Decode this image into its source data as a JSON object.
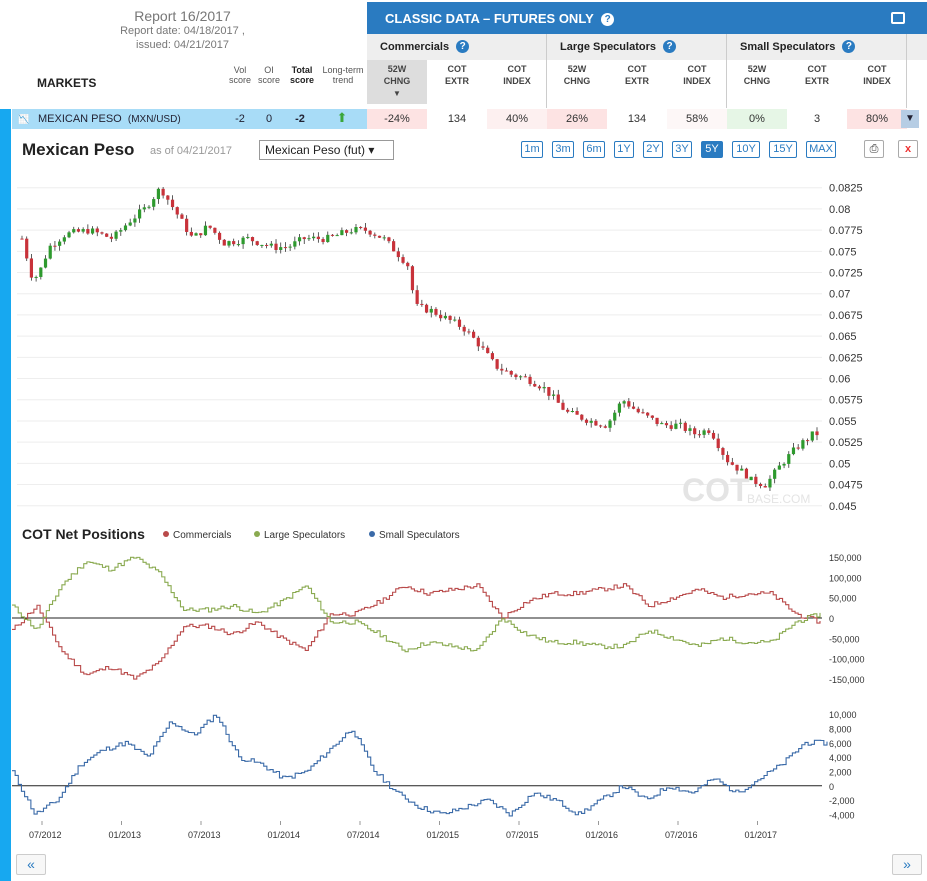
{
  "report": {
    "title": "Report 16/2017",
    "report_date": "Report date: 04/18/2017 ,",
    "issued": "issued: 04/21/2017"
  },
  "markets_header": "MARKETS",
  "score_headers": {
    "vol": "Vol",
    "vol2": "score",
    "oi": "OI",
    "oi2": "score",
    "total": "Total",
    "total2": "score",
    "trend": "Long-term",
    "trend2": "trend"
  },
  "banner": "CLASSIC DATA – FUTURES ONLY",
  "groups": [
    "Commercials",
    "Large Speculators",
    "Small Speculators"
  ],
  "col_headers": [
    {
      "l1": "52W",
      "l2": "CHNG"
    },
    {
      "l1": "COT",
      "l2": "EXTR"
    },
    {
      "l1": "COT",
      "l2": "INDEX"
    },
    {
      "l1": "52W",
      "l2": "CHNG"
    },
    {
      "l1": "COT",
      "l2": "EXTR"
    },
    {
      "l1": "COT",
      "l2": "INDEX"
    },
    {
      "l1": "52W",
      "l2": "CHNG"
    },
    {
      "l1": "COT",
      "l2": "EXTR"
    },
    {
      "l1": "COT",
      "l2": "INDEX"
    }
  ],
  "row": {
    "name": "MEXICAN PESO",
    "code": "(MXN/USD)",
    "vol": "-2",
    "oi": "0",
    "total": "-2",
    "values": [
      "-24%",
      "134",
      "40%",
      "26%",
      "134",
      "58%",
      "0%",
      "3",
      "80%"
    ],
    "value_colors": [
      "#fde3e3",
      "#ffffff",
      "#fdf0f0",
      "#fde3e3",
      "#ffffff",
      "#fdf7f7",
      "#e6f6e6",
      "#ffffff",
      "#fde3e3"
    ]
  },
  "chart_header": {
    "title": "Mexican Peso",
    "asof": "as of 04/21/2017",
    "select": "Mexican Peso (fut) ▾"
  },
  "timeframes": [
    "1m",
    "3m",
    "6m",
    "1Y",
    "2Y",
    "3Y",
    "5Y",
    "10Y",
    "15Y",
    "MAX"
  ],
  "active_timeframe": "5Y",
  "close_label": "x",
  "watermark": "COT",
  "watermark2": "BASE.COM",
  "cot_title": "COT Net Positions",
  "legend": [
    {
      "name": "Commercials",
      "color": "#b94a4a"
    },
    {
      "name": "Large Speculators",
      "color": "#8aaa50"
    },
    {
      "name": "Small Speculators",
      "color": "#3a6aa8"
    }
  ],
  "nav": {
    "prev": "«",
    "next": "»"
  },
  "chart_data": [
    {
      "type": "candlestick",
      "title": "Mexican Peso",
      "y_ticks": [
        "0.0825",
        "0.08",
        "0.0775",
        "0.075",
        "0.0725",
        "0.07",
        "0.0675",
        "0.065",
        "0.0625",
        "0.06",
        "0.0575",
        "0.055",
        "0.0525",
        "0.05",
        "0.0475",
        "0.045"
      ],
      "ylim": [
        0.0445,
        0.084
      ],
      "x_ticks": [
        "07/2012",
        "01/2013",
        "07/2013",
        "01/2014",
        "07/2014",
        "01/2015",
        "07/2015",
        "01/2016",
        "07/2016",
        "01/2017"
      ],
      "x": [
        2012.33,
        2012.4,
        2012.45,
        2012.5,
        2012.6,
        2012.75,
        2012.9,
        2013.0,
        2013.1,
        2013.2,
        2013.3,
        2013.4,
        2013.5,
        2013.6,
        2013.75,
        2013.9,
        2014.0,
        2014.1,
        2014.25,
        2014.4,
        2014.5,
        2014.6,
        2014.75,
        2014.8,
        2014.9,
        2015.0,
        2015.1,
        2015.2,
        2015.3,
        2015.4,
        2015.5,
        2015.6,
        2015.75,
        2015.9,
        2016.0,
        2016.1,
        2016.2,
        2016.35,
        2016.45,
        2016.55,
        2016.65,
        2016.75,
        2016.85,
        2016.9,
        2017.0,
        2017.1,
        2017.2,
        2017.3
      ],
      "close": [
        0.0765,
        0.0715,
        0.073,
        0.0755,
        0.077,
        0.0775,
        0.0765,
        0.0785,
        0.08,
        0.0825,
        0.0795,
        0.0765,
        0.078,
        0.076,
        0.0765,
        0.0755,
        0.0755,
        0.0765,
        0.0765,
        0.0775,
        0.0775,
        0.0765,
        0.0735,
        0.0685,
        0.068,
        0.067,
        0.066,
        0.064,
        0.0615,
        0.0605,
        0.06,
        0.059,
        0.056,
        0.055,
        0.0545,
        0.0575,
        0.056,
        0.0545,
        0.0545,
        0.0535,
        0.054,
        0.0505,
        0.049,
        0.048,
        0.0475,
        0.05,
        0.052,
        0.0535
      ]
    },
    {
      "type": "line",
      "title": "COT Net Positions",
      "y_ticks": [
        "150,000",
        "100,000",
        "50,000",
        "0",
        "-50,000",
        "-100,000",
        "-150,000"
      ],
      "ylim": [
        -170000,
        160000
      ],
      "series": [
        {
          "name": "Commercials",
          "values": [
            -30000,
            30000,
            -80000,
            -140000,
            -120000,
            -150000,
            -110000,
            -20000,
            -20000,
            -40000,
            -10000,
            -50000,
            -80000,
            10000,
            10000,
            40000,
            80000,
            60000,
            70000,
            80000,
            0,
            40000,
            60000,
            60000,
            70000,
            80000,
            30000,
            50000,
            70000,
            50000,
            60000,
            60000,
            10000,
            -10000
          ]
        },
        {
          "name": "Large Speculators",
          "values": [
            30000,
            -30000,
            80000,
            140000,
            120000,
            150000,
            110000,
            20000,
            20000,
            30000,
            10000,
            40000,
            80000,
            -10000,
            -10000,
            -40000,
            -80000,
            -60000,
            -70000,
            -80000,
            0,
            -40000,
            -60000,
            -60000,
            -70000,
            -70000,
            -30000,
            -50000,
            -70000,
            -50000,
            -60000,
            -60000,
            -10000,
            10000
          ]
        }
      ]
    },
    {
      "type": "line",
      "y_ticks": [
        "10,000",
        "8,000",
        "6,000",
        "4,000",
        "2,000",
        "0",
        "-2,000",
        "-4,000"
      ],
      "ylim": [
        -5200,
        11000
      ],
      "series": [
        {
          "name": "Small Speculators",
          "values": [
            2000,
            -4000,
            -2000,
            3000,
            5000,
            6000,
            4000,
            9000,
            7000,
            10000,
            4000,
            3000,
            1000,
            2000,
            5000,
            8000,
            2000,
            -1000,
            -3000,
            -4000,
            -3000,
            -2000,
            -4000,
            -1000,
            -2000,
            -4000,
            -2000,
            0,
            -2000,
            0,
            -1000,
            1000,
            -1000,
            1000,
            3000,
            6000,
            6000
          ]
        }
      ]
    }
  ]
}
